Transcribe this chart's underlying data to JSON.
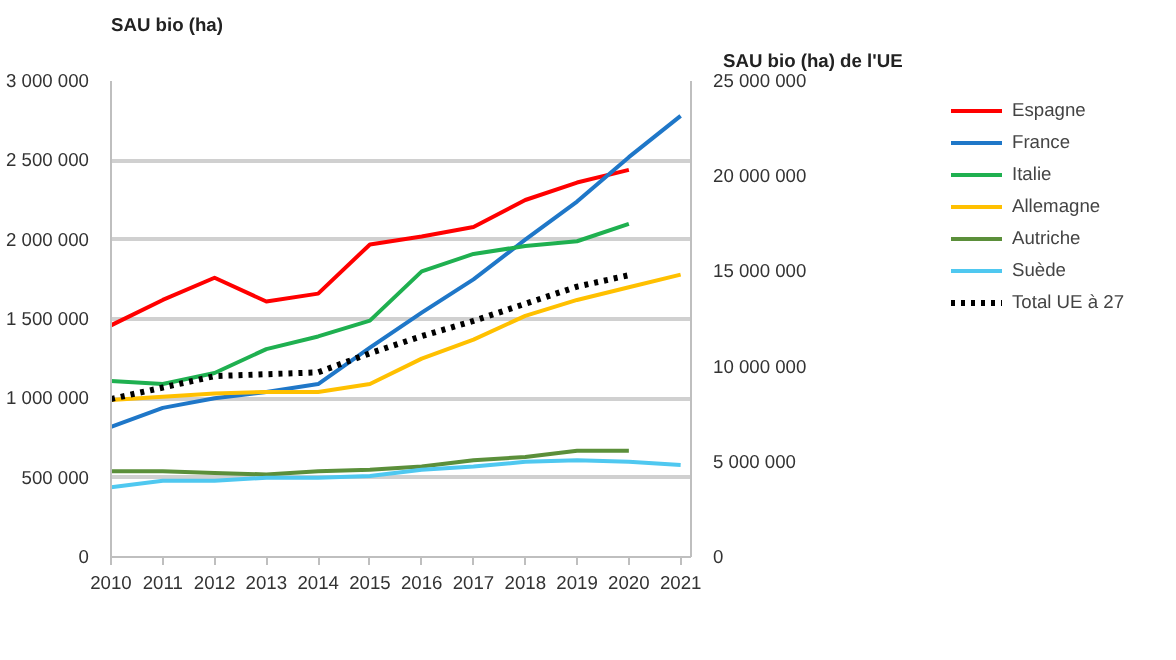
{
  "chart_data": {
    "type": "line",
    "ylabel": "SAU bio (ha)",
    "y2label": "SAU bio (ha) de l'UE",
    "x": [
      2010,
      2011,
      2012,
      2013,
      2014,
      2015,
      2016,
      2017,
      2018,
      2019,
      2020,
      2021
    ],
    "xlim": [
      2010,
      2021.2
    ],
    "xticks": [
      2010,
      2011,
      2012,
      2013,
      2014,
      2015,
      2016,
      2017,
      2018,
      2019,
      2020,
      2021
    ],
    "ylim": [
      0,
      3000000
    ],
    "yticks": [
      {
        "value": 0,
        "label": "0"
      },
      {
        "value": 500000,
        "label": "500 000"
      },
      {
        "value": 1000000,
        "label": "1 000 000"
      },
      {
        "value": 1500000,
        "label": "1 500 000"
      },
      {
        "value": 2000000,
        "label": "2 000 000"
      },
      {
        "value": 2500000,
        "label": "2 500 000"
      },
      {
        "value": 3000000,
        "label": "3 000 000"
      }
    ],
    "y2lim": [
      0,
      25000000
    ],
    "y2ticks": [
      {
        "value": 0,
        "label": "0"
      },
      {
        "value": 5000000,
        "label": "5 000 000"
      },
      {
        "value": 10000000,
        "label": "10 000 000"
      },
      {
        "value": 15000000,
        "label": "15 000 000"
      },
      {
        "value": 20000000,
        "label": "20 000 000"
      },
      {
        "value": 25000000,
        "label": "25 000 000"
      }
    ],
    "grid": "y",
    "legend": "right",
    "marker": "none",
    "series": [
      {
        "name": "Espagne",
        "color": "#ff0000",
        "values": [
          1460000,
          1620000,
          1760000,
          1610000,
          1660000,
          1970000,
          2020000,
          2080000,
          2250000,
          2360000,
          2440000,
          null
        ]
      },
      {
        "name": "France",
        "color": "#1f77c8",
        "values": [
          820000,
          940000,
          1000000,
          1040000,
          1090000,
          1320000,
          1540000,
          1750000,
          2000000,
          2240000,
          2520000,
          2780000
        ]
      },
      {
        "name": "Italie",
        "color": "#1fb050",
        "values": [
          1110000,
          1090000,
          1160000,
          1310000,
          1390000,
          1490000,
          1800000,
          1910000,
          1960000,
          1990000,
          2100000,
          null
        ]
      },
      {
        "name": "Allemagne",
        "color": "#ffc000",
        "values": [
          990000,
          1010000,
          1030000,
          1040000,
          1040000,
          1090000,
          1250000,
          1370000,
          1520000,
          1620000,
          1700000,
          1780000
        ]
      },
      {
        "name": "Autriche",
        "color": "#5b8f3a",
        "values": [
          540000,
          540000,
          530000,
          520000,
          540000,
          550000,
          570000,
          610000,
          630000,
          670000,
          670000,
          null
        ]
      },
      {
        "name": "Suède",
        "color": "#4fc8f0",
        "values": [
          440000,
          480000,
          480000,
          500000,
          500000,
          510000,
          550000,
          570000,
          600000,
          610000,
          600000,
          580000
        ]
      },
      {
        "name": "Total UE à 27",
        "color": "#000000",
        "axis": "y2",
        "line_style": "dotted",
        "values": [
          8300000,
          8900000,
          9500000,
          9600000,
          9700000,
          10700000,
          11600000,
          12400000,
          13300000,
          14200000,
          14800000,
          null
        ]
      }
    ]
  }
}
